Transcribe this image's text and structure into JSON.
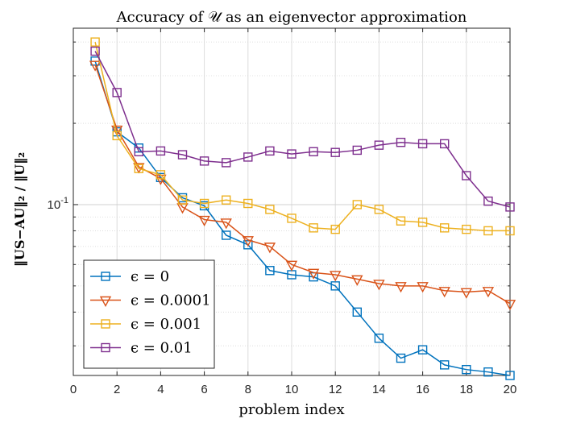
{
  "chart_data": {
    "type": "line",
    "title": "Accuracy of 𝒰 as an eigenvector approximation",
    "xlabel": "problem index",
    "ylabel": "‖US−AU‖₂ / ‖U‖₂",
    "xlim": [
      0,
      20
    ],
    "ylim": [
      0.0233,
      0.45
    ],
    "yscale": "log",
    "grid": true,
    "legend_position": "bottom-left",
    "x_ticks": [
      "0",
      "2",
      "4",
      "6",
      "8",
      "10",
      "12",
      "14",
      "16",
      "18",
      "20"
    ],
    "x_tick_values": [
      0,
      2,
      4,
      6,
      8,
      10,
      12,
      14,
      16,
      18,
      20
    ],
    "y_ticks": [
      "10^-1"
    ],
    "y_tick_values": [
      0.1
    ],
    "x": [
      1,
      2,
      3,
      4,
      5,
      6,
      7,
      8,
      9,
      10,
      11,
      12,
      13,
      14,
      15,
      16,
      17,
      18,
      19,
      20
    ],
    "series": [
      {
        "name": "ϵ = 0",
        "color": "#0072BD",
        "marker": "square",
        "values": [
          0.34,
          0.186,
          0.162,
          0.126,
          0.106,
          0.099,
          0.077,
          0.071,
          0.057,
          0.055,
          0.054,
          0.05,
          0.04,
          0.032,
          0.027,
          0.029,
          0.0255,
          0.0245,
          0.024,
          0.0233
        ]
      },
      {
        "name": "ϵ = 0.0001",
        "color": "#D95319",
        "marker": "triangle-down",
        "values": [
          0.33,
          0.19,
          0.138,
          0.125,
          0.098,
          0.088,
          0.086,
          0.074,
          0.07,
          0.06,
          0.056,
          0.055,
          0.053,
          0.051,
          0.05,
          0.05,
          0.048,
          0.0475,
          0.048,
          0.043
        ]
      },
      {
        "name": "ϵ = 0.001",
        "color": "#EDB120",
        "marker": "square",
        "values": [
          0.4,
          0.18,
          0.136,
          0.129,
          0.104,
          0.101,
          0.104,
          0.101,
          0.096,
          0.089,
          0.082,
          0.081,
          0.1,
          0.096,
          0.087,
          0.086,
          0.082,
          0.081,
          0.08,
          0.08
        ]
      },
      {
        "name": "ϵ = 0.01",
        "color": "#7E2F8E",
        "marker": "square",
        "values": [
          0.37,
          0.26,
          0.157,
          0.158,
          0.153,
          0.145,
          0.143,
          0.15,
          0.158,
          0.154,
          0.157,
          0.156,
          0.159,
          0.166,
          0.17,
          0.168,
          0.168,
          0.128,
          0.103,
          0.098
        ]
      }
    ]
  }
}
